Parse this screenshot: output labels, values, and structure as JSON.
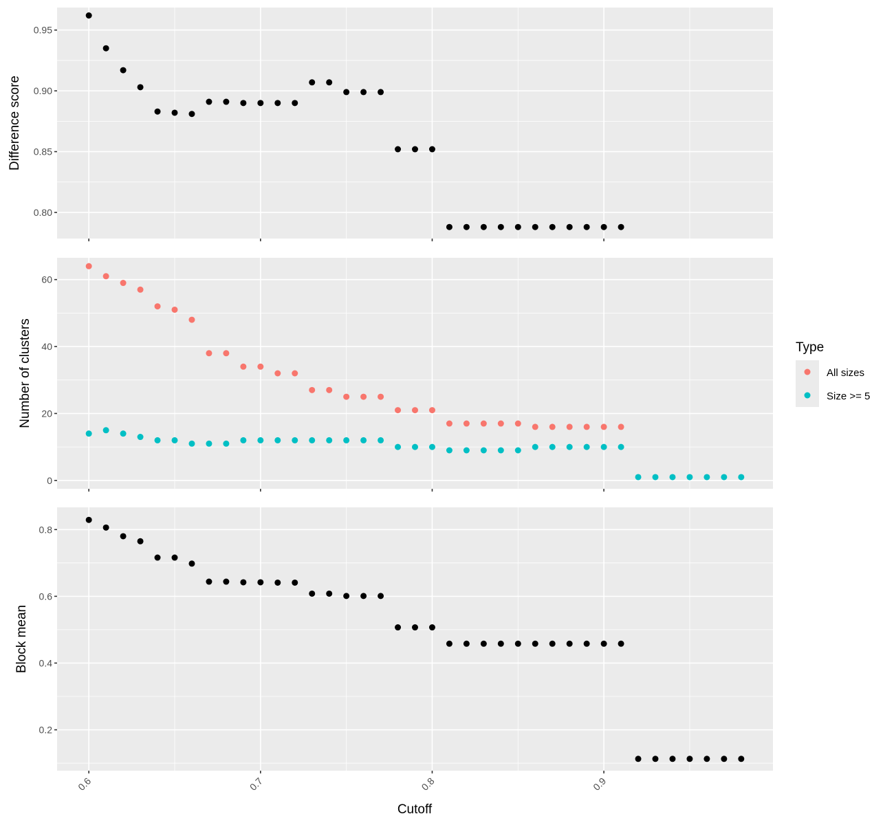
{
  "chart_data": [
    {
      "type": "scatter",
      "ylabel": "Difference score",
      "xlim": [
        0.5815,
        0.9985
      ],
      "ylim": [
        0.7785,
        0.9685
      ],
      "y_ticks": [
        0.8,
        0.85,
        0.9,
        0.95
      ],
      "y_tick_labels": [
        "0.80",
        "0.85",
        "0.90",
        "0.95"
      ],
      "series": [
        {
          "color": "#000000",
          "x": [
            0.6,
            0.61,
            0.62,
            0.63,
            0.64,
            0.65,
            0.66,
            0.67,
            0.68,
            0.69,
            0.7,
            0.71,
            0.72,
            0.73,
            0.74,
            0.75,
            0.76,
            0.77,
            0.78,
            0.79,
            0.8,
            0.81,
            0.82,
            0.83,
            0.84,
            0.85,
            0.86,
            0.87,
            0.88,
            0.89,
            0.9,
            0.91
          ],
          "y": [
            0.962,
            0.935,
            0.917,
            0.903,
            0.883,
            0.882,
            0.881,
            0.891,
            0.891,
            0.89,
            0.89,
            0.89,
            0.89,
            0.907,
            0.907,
            0.899,
            0.899,
            0.899,
            0.852,
            0.852,
            0.852,
            0.788,
            0.788,
            0.788,
            0.788,
            0.788,
            0.788,
            0.788,
            0.788,
            0.788,
            0.788,
            0.788
          ]
        }
      ]
    },
    {
      "type": "scatter",
      "ylabel": "Number of clusters",
      "xlim": [
        0.5815,
        0.9985
      ],
      "ylim": [
        -2.5,
        66.5
      ],
      "y_ticks": [
        0,
        20,
        40,
        60
      ],
      "y_tick_labels": [
        "0",
        "20",
        "40",
        "60"
      ],
      "series": [
        {
          "name": "All sizes",
          "color": "#F8766D",
          "x": [
            0.6,
            0.61,
            0.62,
            0.63,
            0.64,
            0.65,
            0.66,
            0.67,
            0.68,
            0.69,
            0.7,
            0.71,
            0.72,
            0.73,
            0.74,
            0.75,
            0.76,
            0.77,
            0.78,
            0.79,
            0.8,
            0.81,
            0.82,
            0.83,
            0.84,
            0.85,
            0.86,
            0.87,
            0.88,
            0.89,
            0.9,
            0.91
          ],
          "y": [
            64,
            61,
            59,
            57,
            52,
            51,
            48,
            38,
            38,
            34,
            34,
            32,
            32,
            27,
            27,
            25,
            25,
            25,
            21,
            21,
            21,
            17,
            17,
            17,
            17,
            17,
            16,
            16,
            16,
            16,
            16,
            16
          ]
        },
        {
          "name": "Size >= 5",
          "color": "#00BFC4",
          "x": [
            0.6,
            0.61,
            0.62,
            0.63,
            0.64,
            0.65,
            0.66,
            0.67,
            0.68,
            0.69,
            0.7,
            0.71,
            0.72,
            0.73,
            0.74,
            0.75,
            0.76,
            0.77,
            0.78,
            0.79,
            0.8,
            0.81,
            0.82,
            0.83,
            0.84,
            0.85,
            0.86,
            0.87,
            0.88,
            0.89,
            0.9,
            0.91,
            0.92,
            0.93,
            0.94,
            0.95,
            0.96,
            0.97,
            0.98
          ],
          "y": [
            14,
            15,
            14,
            13,
            12,
            12,
            11,
            11,
            11,
            12,
            12,
            12,
            12,
            12,
            12,
            12,
            12,
            12,
            10,
            10,
            10,
            9,
            9,
            9,
            9,
            9,
            10,
            10,
            10,
            10,
            10,
            10,
            1,
            1,
            1,
            1,
            1,
            1,
            1
          ]
        }
      ]
    },
    {
      "type": "scatter",
      "ylabel": "Block mean",
      "xlabel": "Cutoff",
      "xlim": [
        0.5815,
        0.9985
      ],
      "ylim": [
        0.0775,
        0.8665
      ],
      "y_ticks": [
        0.2,
        0.4,
        0.6,
        0.8
      ],
      "y_tick_labels": [
        "0.2",
        "0.4",
        "0.6",
        "0.8"
      ],
      "series": [
        {
          "color": "#000000",
          "x": [
            0.6,
            0.61,
            0.62,
            0.63,
            0.64,
            0.65,
            0.66,
            0.67,
            0.68,
            0.69,
            0.7,
            0.71,
            0.72,
            0.73,
            0.74,
            0.75,
            0.76,
            0.77,
            0.78,
            0.79,
            0.8,
            0.81,
            0.82,
            0.83,
            0.84,
            0.85,
            0.86,
            0.87,
            0.88,
            0.89,
            0.9,
            0.91,
            0.92,
            0.93,
            0.94,
            0.95,
            0.96,
            0.97,
            0.98
          ],
          "y": [
            0.829,
            0.806,
            0.78,
            0.765,
            0.716,
            0.716,
            0.698,
            0.644,
            0.644,
            0.642,
            0.642,
            0.641,
            0.641,
            0.608,
            0.608,
            0.601,
            0.601,
            0.601,
            0.507,
            0.507,
            0.507,
            0.458,
            0.458,
            0.458,
            0.458,
            0.458,
            0.458,
            0.458,
            0.458,
            0.458,
            0.458,
            0.458,
            0.113,
            0.113,
            0.113,
            0.113,
            0.113,
            0.113,
            0.113
          ]
        }
      ]
    }
  ],
  "x_axis": {
    "title": "Cutoff",
    "ticks": [
      0.6,
      0.7,
      0.8,
      0.9
    ],
    "tick_labels": [
      "0.6",
      "0.7",
      "0.8",
      "0.9"
    ]
  },
  "legend": {
    "title": "Type",
    "placement": "right",
    "items": [
      {
        "label": "All sizes",
        "color": "#F8766D"
      },
      {
        "label": "Size >= 5",
        "color": "#00BFC4"
      }
    ]
  },
  "style": {
    "panel_background": "#EBEBEB",
    "grid_color": "#FFFFFF",
    "default_point_color": "#000000"
  }
}
